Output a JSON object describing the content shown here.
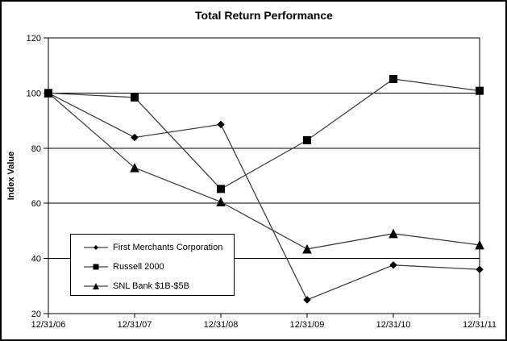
{
  "chart_data": {
    "type": "line",
    "title": "Total Return Performance",
    "ylabel": "Index Value",
    "xlabel": "",
    "x": [
      "12/31/06",
      "12/31/07",
      "12/31/08",
      "12/31/09",
      "12/31/10",
      "12/31/11"
    ],
    "series": [
      {
        "name": "First Merchants Corporation",
        "marker": "diamond",
        "values": [
          100,
          83.9,
          88.6,
          25,
          37.6,
          36
        ]
      },
      {
        "name": "Russell 2000",
        "marker": "square",
        "values": [
          100,
          98.4,
          65.2,
          82.9,
          105.1,
          100.8
        ]
      },
      {
        "name": "SNL Bank $1B-$5B",
        "marker": "triangle",
        "values": [
          100,
          72.9,
          60.5,
          43.4,
          49,
          44.9
        ]
      }
    ],
    "ylim": [
      20,
      120
    ],
    "yticks": [
      20,
      40,
      60,
      80,
      100,
      120
    ],
    "grid": true,
    "legend_position": "inside bottom-left"
  },
  "colors": {
    "series_line": "#404040",
    "marker_fill": "#000000",
    "axis": "#000000",
    "gridline": "#000000",
    "background": "#ffffff",
    "text": "#000000"
  }
}
